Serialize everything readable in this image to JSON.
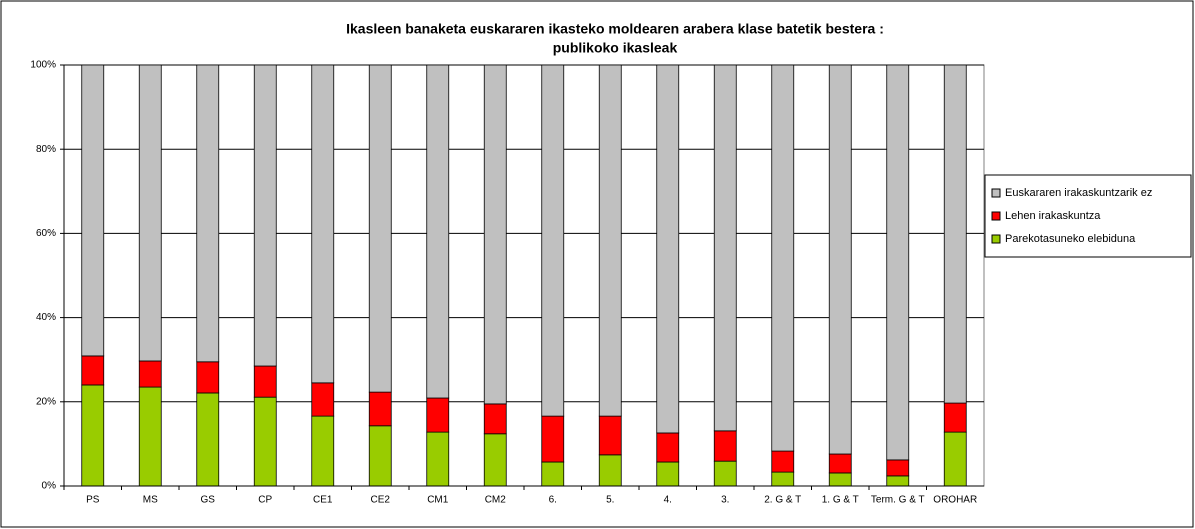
{
  "chart_data": {
    "type": "stacked_bar",
    "title": [
      "Ikasleen banaketa euskararen ikasteko moldearen arabera klase batetik bestera :",
      "publikoko ikasleak"
    ],
    "categories": [
      "PS",
      "MS",
      "GS",
      "CP",
      "CE1",
      "CE2",
      "CM1",
      "CM2",
      "6.",
      "5.",
      "4.",
      "3.",
      "2. G & T",
      "1. G & T",
      "Term. G & T",
      "OROHAR"
    ],
    "series": [
      {
        "name": "Parekotasuneko elebiduna",
        "color": "#99cc00",
        "values": [
          24.0,
          23.5,
          22.1,
          21.1,
          16.6,
          14.3,
          12.8,
          12.4,
          5.7,
          7.4,
          5.7,
          5.9,
          3.3,
          3.1,
          2.4,
          12.8
        ]
      },
      {
        "name": "Lehen irakaskuntza",
        "color": "#ff0000",
        "values": [
          6.9,
          6.2,
          7.4,
          7.4,
          7.9,
          8.0,
          8.1,
          7.1,
          10.9,
          9.2,
          6.9,
          7.2,
          5.0,
          4.5,
          3.8,
          6.9
        ]
      },
      {
        "name": "Euskararen irakaskuntzarik ez",
        "color": "#c0c0c0",
        "values": [
          69.1,
          70.3,
          70.5,
          71.5,
          75.5,
          77.7,
          79.1,
          80.5,
          83.4,
          83.4,
          87.4,
          86.9,
          91.7,
          92.4,
          93.8,
          80.3
        ]
      }
    ],
    "ylim": [
      0,
      100
    ],
    "yticks": [
      {
        "value": 0,
        "label": "0%"
      },
      {
        "value": 20,
        "label": "20%"
      },
      {
        "value": 40,
        "label": "40%"
      },
      {
        "value": 60,
        "label": "60%"
      },
      {
        "value": 80,
        "label": "80%"
      },
      {
        "value": 100,
        "label": "100%"
      }
    ],
    "grid": true,
    "legend": "right"
  }
}
